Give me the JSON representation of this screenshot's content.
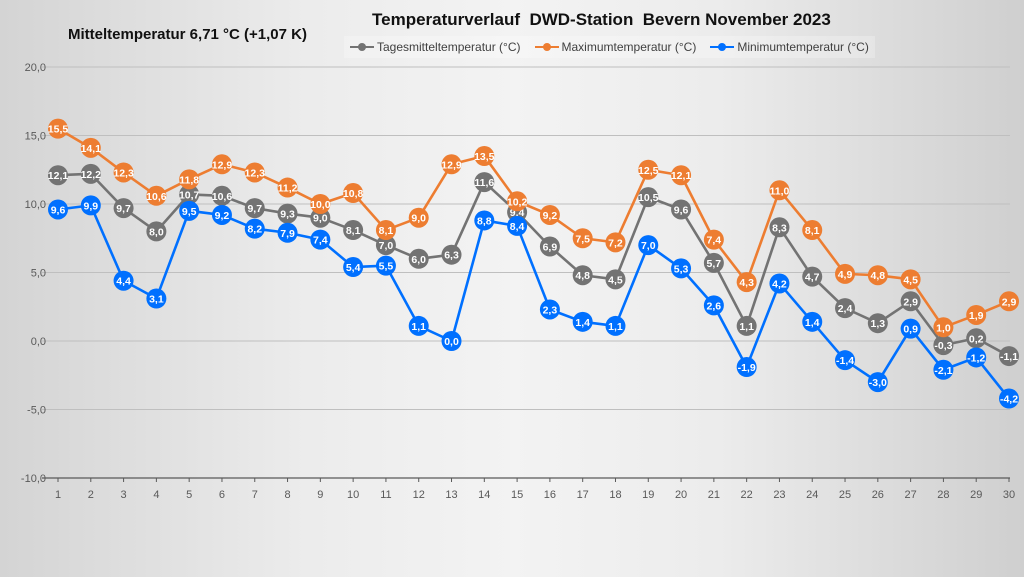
{
  "header": {
    "mean_text": "Mitteltemperatur 6,71 °C (+1,07 K)",
    "title": "Temperaturverlauf  DWD-Station  Bevern November 2023"
  },
  "chart_data": {
    "type": "line",
    "title": "Temperaturverlauf  DWD-Station  Bevern November 2023",
    "subtitle": "Mitteltemperatur 6,71 °C (+1,07 K)",
    "xlabel": "",
    "ylabel": "",
    "x": [
      1,
      2,
      3,
      4,
      5,
      6,
      7,
      8,
      9,
      10,
      11,
      12,
      13,
      14,
      15,
      16,
      17,
      18,
      19,
      20,
      21,
      22,
      23,
      24,
      25,
      26,
      27,
      28,
      29,
      30
    ],
    "ylim": [
      -10,
      20
    ],
    "yticks": [
      -10,
      -5,
      0,
      5,
      10,
      15,
      20
    ],
    "ytick_labels": [
      "-10,0",
      "-5,0",
      "0,0",
      "5,0",
      "10,0",
      "15,0",
      "20,0"
    ],
    "grid": true,
    "legend_position": "top",
    "series": [
      {
        "name": "Tagesmitteltemperatur (°C)",
        "color": "#737373",
        "values": [
          12.1,
          12.2,
          9.7,
          8.0,
          10.7,
          10.6,
          9.7,
          9.3,
          9.0,
          8.1,
          7.0,
          6.0,
          6.3,
          11.6,
          9.4,
          6.9,
          4.8,
          4.5,
          10.5,
          9.6,
          5.7,
          1.1,
          8.3,
          4.7,
          2.4,
          1.3,
          2.9,
          -0.3,
          0.2,
          -1.1
        ]
      },
      {
        "name": "Maximumtemperatur (°C)",
        "color": "#ed7d31",
        "values": [
          15.5,
          14.1,
          12.3,
          10.6,
          11.8,
          12.9,
          12.3,
          11.2,
          10.0,
          10.8,
          8.1,
          9.0,
          12.9,
          13.5,
          10.2,
          9.2,
          7.5,
          7.2,
          12.5,
          12.1,
          7.4,
          4.3,
          11.0,
          8.1,
          4.9,
          4.8,
          4.5,
          1.0,
          1.9,
          2.9
        ]
      },
      {
        "name": "Minimumtemperatur (°C)",
        "color": "#0070ff",
        "values": [
          9.6,
          9.9,
          4.4,
          3.1,
          9.5,
          9.2,
          8.2,
          7.9,
          7.4,
          5.4,
          5.5,
          1.1,
          0.0,
          8.8,
          8.4,
          2.3,
          1.4,
          1.1,
          7.0,
          5.3,
          2.6,
          -1.9,
          4.2,
          1.4,
          -1.4,
          -3.0,
          0.9,
          -2.1,
          -1.2,
          -4.2
        ]
      }
    ]
  }
}
